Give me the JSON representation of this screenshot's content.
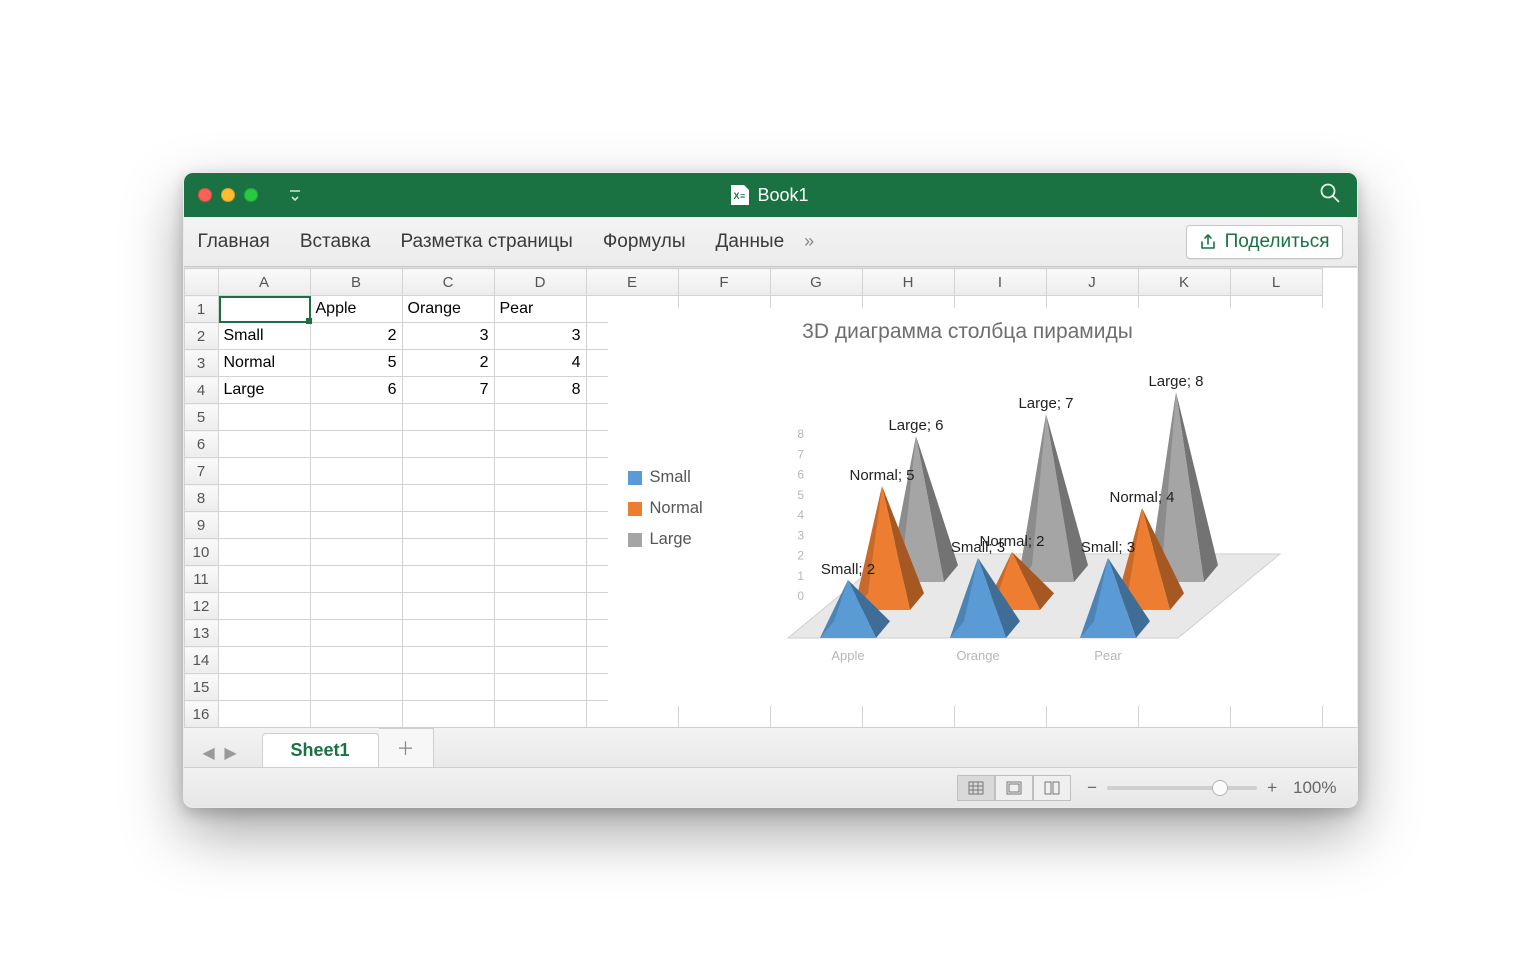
{
  "window": {
    "title": "Book1"
  },
  "ribbon": {
    "tabs": [
      "Главная",
      "Вставка",
      "Разметка страницы",
      "Формулы",
      "Данные"
    ],
    "more": "»",
    "share": "Поделиться"
  },
  "grid": {
    "columns": [
      "A",
      "B",
      "C",
      "D",
      "E",
      "F",
      "G",
      "H",
      "I",
      "J",
      "K",
      "L"
    ],
    "row_count": 16,
    "selected_cell": "A1",
    "data": {
      "headers_row": 1,
      "col_headers": [
        "",
        "Apple",
        "Orange",
        "Pear"
      ],
      "rows": [
        {
          "label": "Small",
          "values": [
            2,
            3,
            3
          ]
        },
        {
          "label": "Normal",
          "values": [
            5,
            2,
            4
          ]
        },
        {
          "label": "Large",
          "values": [
            6,
            7,
            8
          ]
        }
      ]
    }
  },
  "chart": {
    "type": "3d-pyramid-column",
    "title": "3D диаграмма столбца пирамиды",
    "categories": [
      "Apple",
      "Orange",
      "Pear"
    ],
    "series": [
      {
        "name": "Small",
        "color": "#5b9bd5",
        "values": [
          2,
          3,
          3
        ]
      },
      {
        "name": "Normal",
        "color": "#ed7d31",
        "values": [
          5,
          2,
          4
        ]
      },
      {
        "name": "Large",
        "color": "#a5a5a5",
        "values": [
          6,
          7,
          8
        ]
      }
    ],
    "y_axis": {
      "min": 0,
      "max": 8,
      "step": 1,
      "label_color": "#b6b6b6",
      "label_fontsize": 12
    },
    "category_label_color": "#b6b6b6",
    "category_label_fontsize": 13,
    "data_label_fontsize": 15,
    "data_label_color": "#1f1f1f",
    "floor_color": "#e8e8e8",
    "wall_stroke": "#cfcfcf",
    "title_color": "#6e6e6e",
    "title_fontsize": 21
  },
  "sheets": {
    "active": "Sheet1"
  },
  "status": {
    "zoom": "100%"
  }
}
